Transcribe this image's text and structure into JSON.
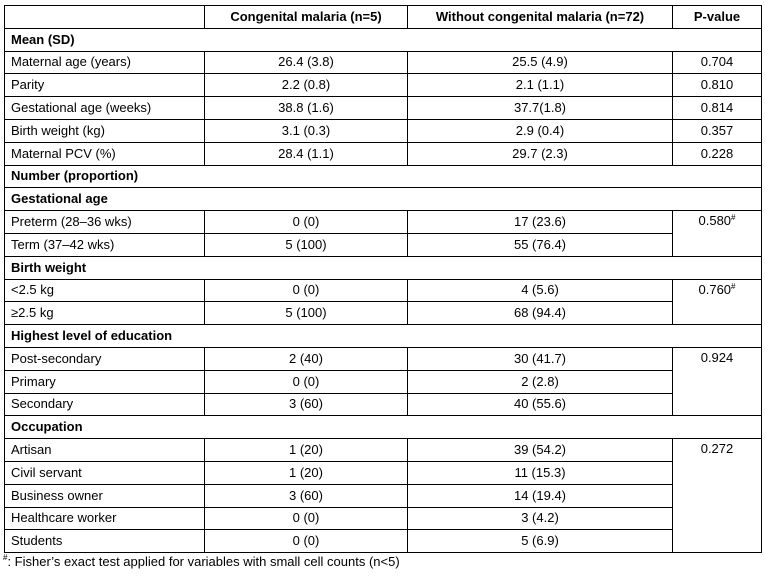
{
  "headers": {
    "label": "",
    "congenital": "Congenital malaria (n=5)",
    "without": "Without congenital malaria (n=72)",
    "pvalue": "P-value"
  },
  "sections": {
    "mean_sd": "Mean (SD)",
    "number_proportion": "Number (proportion)",
    "gestational_age": "Gestational age",
    "birth_weight": "Birth weight",
    "education": "Highest level of education",
    "occupation": "Occupation"
  },
  "rows": {
    "maternal_age": {
      "label": "Maternal age (years)",
      "congenital": "26.4 (3.8)",
      "without": "25.5 (4.9)",
      "p": "0.704"
    },
    "parity": {
      "label": "Parity",
      "congenital": "2.2 (0.8)",
      "without": "2.1 (1.1)",
      "p": "0.810"
    },
    "gestational_age_weeks": {
      "label": "Gestational age (weeks)",
      "congenital": "38.8 (1.6)",
      "without": "37.7(1.8)",
      "p": "0.814"
    },
    "birth_weight_kg": {
      "label": "Birth weight (kg)",
      "congenital": "3.1 (0.3)",
      "without": "2.9 (0.4)",
      "p": "0.357"
    },
    "maternal_pcv": {
      "label": "Maternal PCV (%)",
      "congenital": "28.4 (1.1)",
      "without": "29.7 (2.3)",
      "p": "0.228"
    },
    "preterm": {
      "label": "Preterm (28–36 wks)",
      "congenital": "0 (0)",
      "without": "17 (23.6)",
      "p": "0.580",
      "p_mark": "#"
    },
    "term": {
      "label": "Term (37–42 wks)",
      "congenital": "5 (100)",
      "without": "55 (76.4)"
    },
    "lt_2_5": {
      "label": "<2.5 kg",
      "congenital": "0 (0)",
      "without": "4 (5.6)",
      "p": "0.760",
      "p_mark": "#"
    },
    "ge_2_5": {
      "label": "≥2.5 kg",
      "congenital": "5 (100)",
      "without": "68 (94.4)"
    },
    "post_secondary": {
      "label": "Post-secondary",
      "congenital": "2 (40)",
      "without": "30 (41.7)",
      "p": "0.924"
    },
    "primary": {
      "label": "Primary",
      "congenital": "0 (0)",
      "without": "2 (2.8)"
    },
    "secondary": {
      "label": "Secondary",
      "congenital": "3 (60)",
      "without": "40 (55.6)"
    },
    "artisan": {
      "label": "Artisan",
      "congenital": "1 (20)",
      "without": "39 (54.2)",
      "p": "0.272"
    },
    "civil_servant": {
      "label": "Civil servant",
      "congenital": "1 (20)",
      "without": "11 (15.3)"
    },
    "business_owner": {
      "label": "Business owner",
      "congenital": "3 (60)",
      "without": "14 (19.4)"
    },
    "healthcare_worker": {
      "label": "Healthcare worker",
      "congenital": "0 (0)",
      "without": "3 (4.2)"
    },
    "students": {
      "label": "Students",
      "congenital": "0 (0)",
      "without": "5 (6.9)"
    }
  },
  "footnote": {
    "mark": "#",
    "text": ": Fisher’s exact test applied for variables with small cell counts (n<5)"
  }
}
